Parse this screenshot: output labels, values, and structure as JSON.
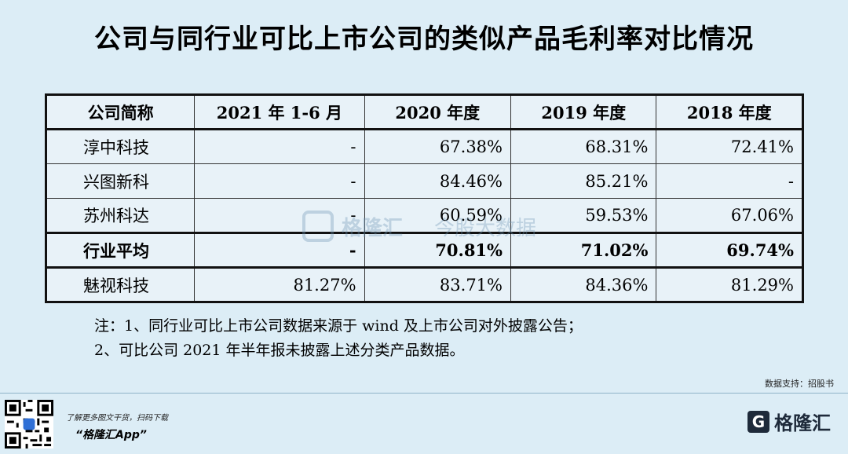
{
  "title": "公司与同行业可比上市公司的类似产品毛利率对比情况",
  "chart_data": {
    "type": "table",
    "headers": [
      "公司简称",
      "2021 年 1-6 月",
      "2020 年度",
      "2019 年度",
      "2018 年度"
    ],
    "rows": [
      {
        "name": "淳中科技",
        "values": [
          "-",
          "67.38%",
          "68.31%",
          "72.41%"
        ],
        "bold": false
      },
      {
        "name": "兴图新科",
        "values": [
          "-",
          "84.46%",
          "85.21%",
          "-"
        ],
        "bold": false
      },
      {
        "name": "苏州科达",
        "values": [
          "-",
          "60.59%",
          "59.53%",
          "67.06%"
        ],
        "bold": false
      },
      {
        "name": "行业平均",
        "values": [
          "-",
          "70.81%",
          "71.02%",
          "69.74%"
        ],
        "bold": true
      },
      {
        "name": "魅视科技",
        "values": [
          "81.27%",
          "83.71%",
          "84.36%",
          "81.29%"
        ],
        "bold": false
      }
    ]
  },
  "notes": [
    "注：1、同行业可比上市公司数据来源于 wind 及上市公司对外披露公告；",
    "2、可比公司 2021 年半年报未披露上述分类产品数据。"
  ],
  "source": "数据支持：招股书",
  "footer": {
    "promo": "了解更多图文干货，扫码下载",
    "app": "“格隆汇App”",
    "logo_mark": "G",
    "logo_text": "格隆汇"
  },
  "watermark": {
    "text": "格隆汇",
    "sub": "今股大数据"
  }
}
